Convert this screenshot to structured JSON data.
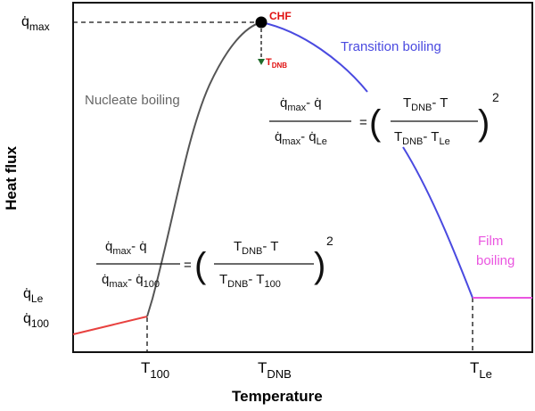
{
  "axes": {
    "xlabel": "Temperature",
    "ylabel": "Heat flux",
    "x_ticks": [
      {
        "base": "T",
        "sub": "100"
      },
      {
        "base": "T",
        "sub": "DNB"
      },
      {
        "base": "T",
        "sub": "Le"
      }
    ],
    "y_ticks": [
      {
        "base": "q̇",
        "sub": "max"
      },
      {
        "base": "q̇",
        "sub": "Le"
      },
      {
        "base": "q̇",
        "sub": "100"
      }
    ]
  },
  "regions": {
    "nucleate": "Nucleate boiling",
    "transition": "Transition boiling",
    "film_line1": "Film",
    "film_line2": "boiling"
  },
  "point": {
    "chf": "CHF",
    "dnb_marker_base": "T",
    "dnb_marker_sub": "DNB"
  },
  "equation_nucleate": {
    "num_left": "q̇max- q̇",
    "den_left": "q̇max- q̇100",
    "num_right": "TDNB- T",
    "den_right": "TDNB- T100",
    "exponent": "2"
  },
  "equation_transition": {
    "num_left": "q̇max- q̇",
    "den_left": "q̇max- q̇Le",
    "num_right": "TDNB- T",
    "den_right": "TDNB- TLe",
    "exponent": "2"
  },
  "colors": {
    "natural_convection": "#e8413f",
    "nucleate": "#555555",
    "transition": "#4a4ae0",
    "film": "#ea55e0",
    "chf_label": "#e01010",
    "dnb_marker": "#1f6a2a"
  }
}
